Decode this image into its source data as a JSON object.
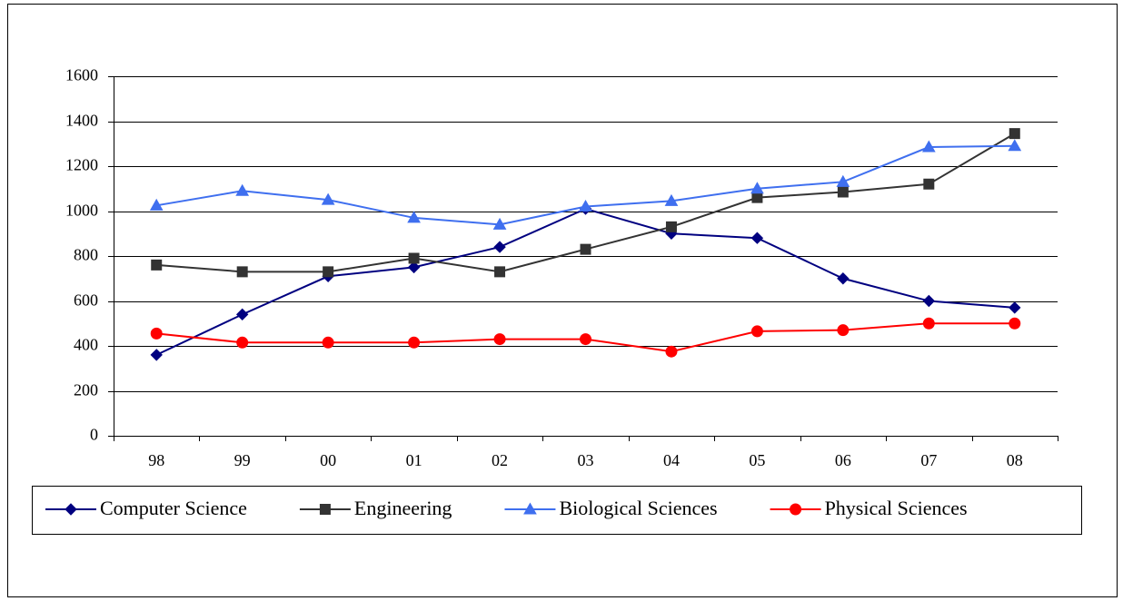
{
  "chart_data": {
    "type": "line",
    "categories": [
      "98",
      "99",
      "00",
      "01",
      "02",
      "03",
      "04",
      "05",
      "06",
      "07",
      "08"
    ],
    "series": [
      {
        "name": "Computer Science",
        "color": "#000080",
        "marker": "diamond",
        "values": [
          360,
          540,
          710,
          750,
          840,
          1010,
          900,
          880,
          700,
          600,
          570
        ]
      },
      {
        "name": "Engineering",
        "color": "#333333",
        "marker": "square",
        "values": [
          760,
          730,
          730,
          790,
          730,
          830,
          930,
          1060,
          1085,
          1120,
          1345
        ]
      },
      {
        "name": "Biological Sciences",
        "color": "#3f6fef",
        "marker": "triangle",
        "values": [
          1025,
          1090,
          1050,
          970,
          940,
          1020,
          1045,
          1100,
          1130,
          1285,
          1290
        ]
      },
      {
        "name": "Physical Sciences",
        "color": "#ff0000",
        "marker": "circle",
        "values": [
          455,
          415,
          415,
          415,
          430,
          430,
          375,
          465,
          470,
          500,
          500
        ]
      }
    ],
    "ylim": [
      0,
      1600
    ],
    "yticks": [
      0,
      200,
      400,
      600,
      800,
      1000,
      1200,
      1400,
      1600
    ],
    "grid": true,
    "legend": "bottom"
  }
}
